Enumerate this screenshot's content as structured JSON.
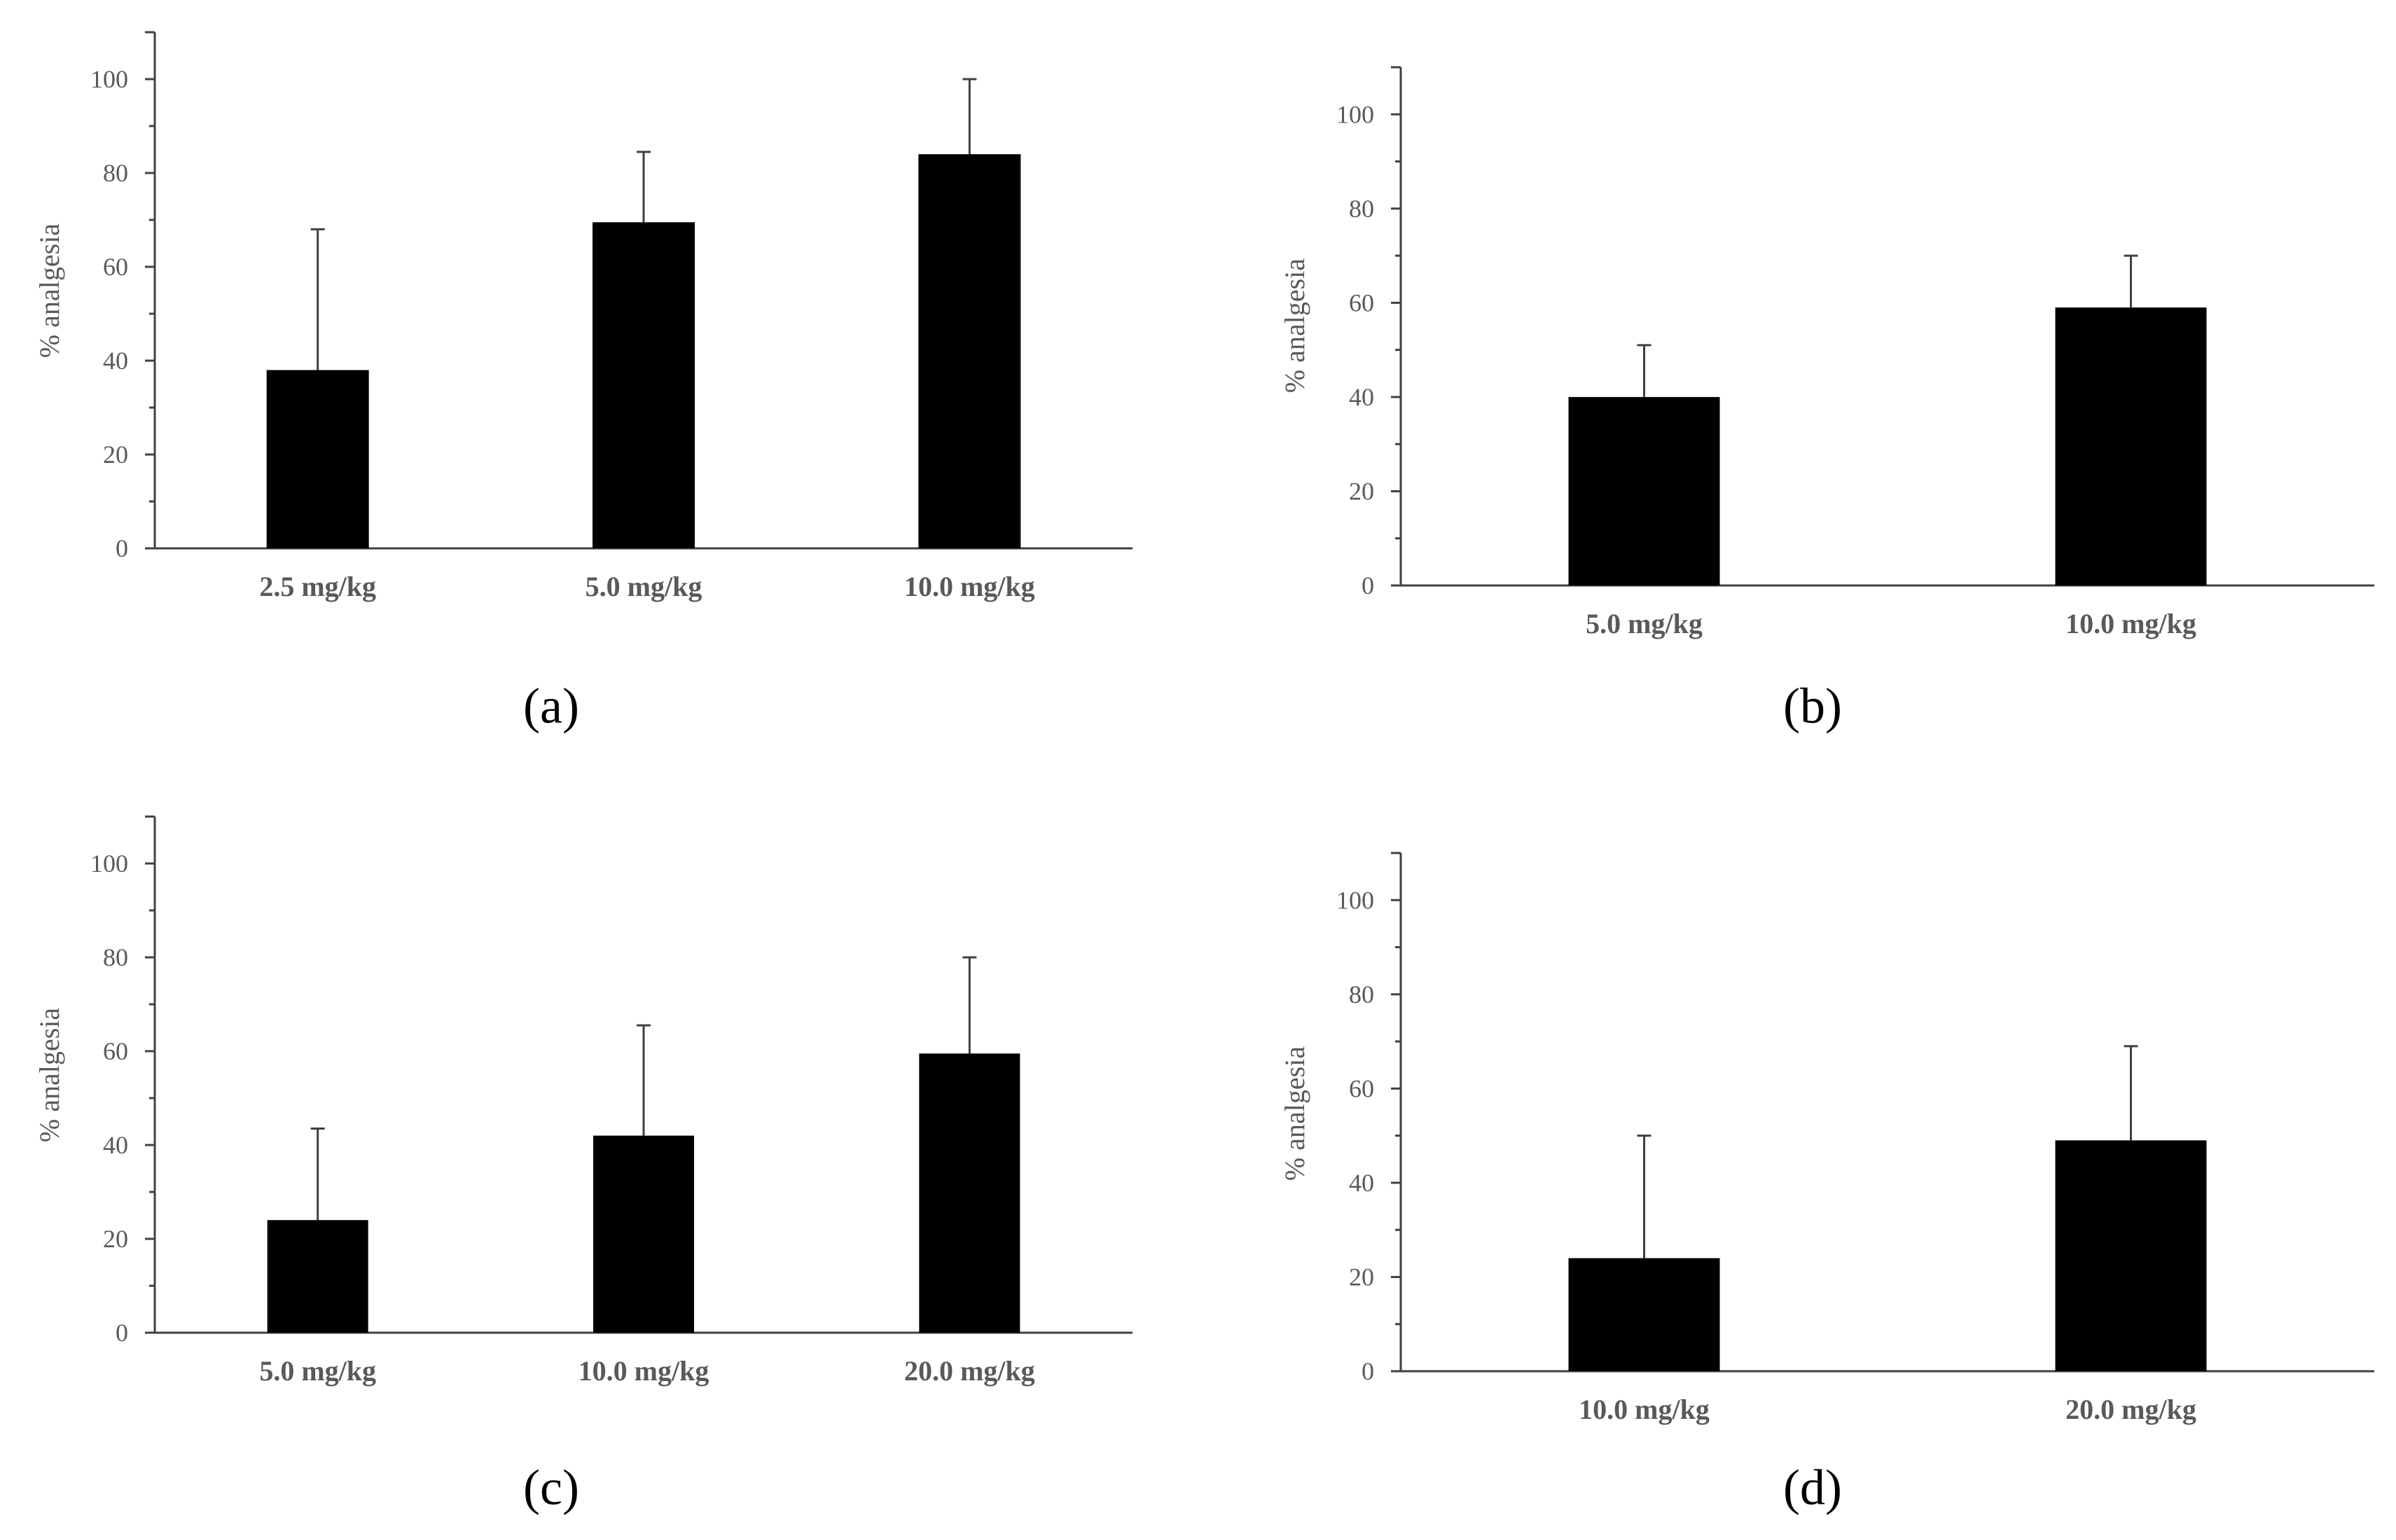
{
  "figure": {
    "bar_color": "#000000",
    "axis_color": "#404040",
    "text_color": "#595959"
  },
  "chart_data": [
    {
      "panel": "a",
      "panel_label": "(a)",
      "type": "bar",
      "ylabel": "% analgesia",
      "xlabel": "",
      "ylim": [
        0,
        110
      ],
      "yticks": [
        0,
        20,
        40,
        60,
        80,
        100
      ],
      "categories": [
        "2.5 mg/kg",
        "5.0 mg/kg",
        "10.0 mg/kg"
      ],
      "values": [
        38,
        69.5,
        84
      ],
      "error_upper": [
        30,
        15,
        16
      ]
    },
    {
      "panel": "b",
      "panel_label": "(b)",
      "type": "bar",
      "ylabel": "% analgesia",
      "xlabel": "",
      "ylim": [
        0,
        110
      ],
      "yticks": [
        0,
        20,
        40,
        60,
        80,
        100
      ],
      "categories": [
        "5.0 mg/kg",
        "10.0 mg/kg"
      ],
      "values": [
        40,
        59
      ],
      "error_upper": [
        11,
        11
      ]
    },
    {
      "panel": "c",
      "panel_label": "(c)",
      "type": "bar",
      "ylabel": "% analgesia",
      "xlabel": "",
      "ylim": [
        0,
        110
      ],
      "yticks": [
        0,
        20,
        40,
        60,
        80,
        100
      ],
      "categories": [
        "5.0 mg/kg",
        "10.0 mg/kg",
        "20.0 mg/kg"
      ],
      "values": [
        24,
        42,
        59.5
      ],
      "error_upper": [
        19.5,
        23.5,
        20.5
      ]
    },
    {
      "panel": "d",
      "panel_label": "(d)",
      "type": "bar",
      "ylabel": "% analgesia",
      "xlabel": "",
      "ylim": [
        0,
        110
      ],
      "yticks": [
        0,
        20,
        40,
        60,
        80,
        100
      ],
      "categories": [
        "10.0 mg/kg",
        "20.0 mg/kg"
      ],
      "values": [
        24,
        49
      ],
      "error_upper": [
        26,
        20
      ]
    }
  ]
}
